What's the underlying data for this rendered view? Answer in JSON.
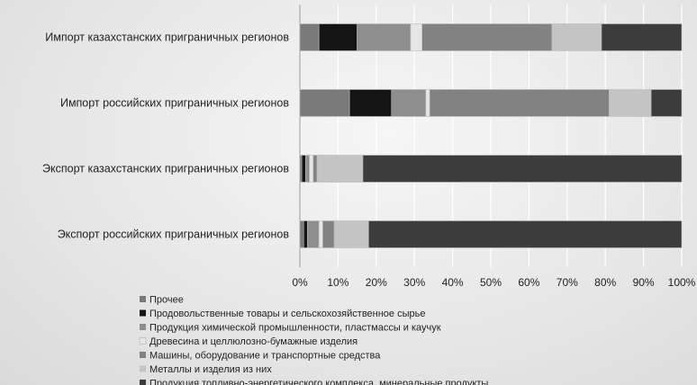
{
  "chart_data": {
    "type": "bar",
    "orientation": "horizontal",
    "stacked": true,
    "percent": true,
    "title": "",
    "xlabel": "",
    "ylabel": "",
    "xlim": [
      0,
      100
    ],
    "x_tick_labels": [
      "0%",
      "10%",
      "20%",
      "30%",
      "40%",
      "50%",
      "60%",
      "70%",
      "80%",
      "90%",
      "100%"
    ],
    "grid": true,
    "legend_position": "bottom",
    "categories": [
      "Импорт казахстанских приграничных регионов",
      "Импорт российских приграничных регионов",
      "Экспорт казахстанских приграничных регионов",
      "Экспорт российских приграничных регионов"
    ],
    "series": [
      {
        "name": "Прочее",
        "color": "#7a7a7a",
        "values": [
          5,
          13,
          0.5,
          1
        ]
      },
      {
        "name": "Продовольственные товары и сельскохозяйственное сырье",
        "color": "#141414",
        "values": [
          10,
          11,
          1,
          1
        ]
      },
      {
        "name": "Продукция химической промышленности, пластмассы и каучук",
        "color": "#8e8e8e",
        "values": [
          14,
          9,
          1,
          3
        ]
      },
      {
        "name": "Древесина и целлюлозно-бумажные изделия",
        "color": "#e6e6e6",
        "values": [
          3,
          1,
          1,
          1
        ]
      },
      {
        "name": "Машины, оборудование и транспортные средства",
        "color": "#828282",
        "values": [
          34,
          47,
          1,
          3
        ]
      },
      {
        "name": "Металлы и изделия из них",
        "color": "#c4c4c4",
        "values": [
          13,
          11,
          12,
          9
        ]
      },
      {
        "name": "Продукция топливно-энергетического комплекса, минеральные продукты",
        "color": "#3c3c3c",
        "values": [
          21,
          8,
          83.5,
          82
        ]
      }
    ]
  }
}
